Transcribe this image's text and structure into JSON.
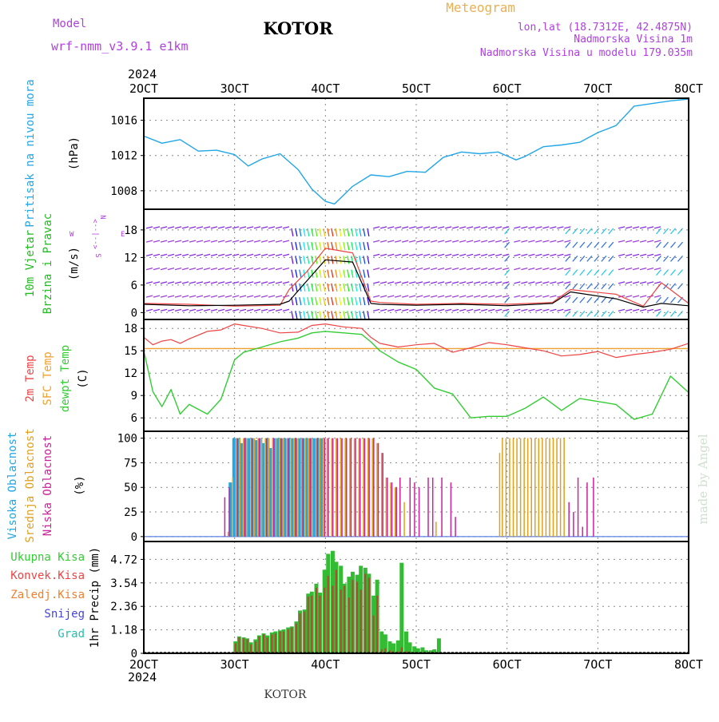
{
  "header": {
    "model_label": "Model",
    "model_name": "wrf-nmm_v3.9.1 e1km",
    "location": "KOTOR",
    "meteogram_label": "Meteogram",
    "coords": "lon,lat (18.7312E, 42.4875N)",
    "elevation": "Nadmorska Visina 1m",
    "model_elevation": "Nadmorska Visina u modelu 179.035m",
    "footer_location": "KOTOR",
    "credit": "made by Angel"
  },
  "colors": {
    "pressure": "#22a6e6",
    "temp2m": "#ee4444",
    "sfc": "#f0a030",
    "dewpt": "#33cc33",
    "high_cloud": "#22a6e6",
    "mid_cloud": "#e0a020",
    "low_cloud": "#cc2299",
    "wind_label": "#22bb22",
    "wind_compass": "#b040e0",
    "header_purple": "#b040e0",
    "header_orange": "#e8b050"
  },
  "time_axis": {
    "ticks": [
      "2OCT",
      "3OCT",
      "4OCT",
      "5OCT",
      "6OCT",
      "7OCT",
      "8OCT"
    ],
    "year": "2024"
  },
  "chart_data": [
    {
      "type": "line",
      "name": "pressure",
      "ylabel_colored": "Pritisak na nivou mora",
      "ylabel_unit": "(hPa)",
      "yticks": [
        "1008",
        "1012",
        "1016"
      ],
      "ylim": [
        1005.9,
        1018.5
      ],
      "x_days": [
        2.0,
        2.2,
        2.4,
        2.6,
        2.8,
        3.0,
        3.15,
        3.3,
        3.5,
        3.7,
        3.85,
        4.0,
        4.1,
        4.3,
        4.5,
        4.7,
        4.9,
        5.1,
        5.3,
        5.5,
        5.7,
        5.9,
        6.1,
        6.2,
        6.4,
        6.6,
        6.8,
        7.0,
        7.2,
        7.4,
        7.6,
        7.8,
        8.0
      ],
      "series": [
        {
          "values": [
            1014.2,
            1013.4,
            1013.8,
            1012.5,
            1012.6,
            1012.1,
            1010.8,
            1011.6,
            1012.2,
            1010.4,
            1008.2,
            1006.8,
            1006.5,
            1008.5,
            1009.8,
            1009.6,
            1010.2,
            1010.1,
            1011.8,
            1012.4,
            1012.2,
            1012.4,
            1011.5,
            1011.9,
            1013.0,
            1013.2,
            1013.5,
            1014.6,
            1015.4,
            1017.6,
            1017.9,
            1018.2,
            1018.4
          ]
        }
      ]
    },
    {
      "type": "line",
      "name": "wind",
      "ylabel_colored_1": "10m Vjetar",
      "ylabel_colored_2": "Brzina i Pravac",
      "ylabel_unit": "(m/s)",
      "compass": {
        "n": "N",
        "s": "S",
        "w": "W",
        "e": "E",
        "arrows": "<--|-->"
      },
      "yticks": [
        "0",
        "6",
        "12",
        "18"
      ],
      "ylim": [
        -1.5,
        22.5
      ],
      "x_days": [
        2.0,
        2.5,
        3.0,
        3.5,
        3.6,
        3.8,
        4.0,
        4.3,
        4.5,
        4.6,
        5.0,
        5.5,
        6.0,
        6.5,
        6.7,
        7.2,
        7.5,
        7.7,
        8.0
      ],
      "series": [
        {
          "name": "speed",
          "values": [
            1.8,
            1.5,
            1.6,
            1.8,
            2.5,
            7.0,
            11.5,
            11.0,
            2.0,
            1.8,
            1.6,
            1.8,
            1.5,
            2.0,
            4.5,
            3.0,
            1.2,
            2.0,
            1.5
          ]
        },
        {
          "name": "gust",
          "values": [
            2.0,
            1.8,
            1.4,
            1.6,
            5.0,
            9.0,
            14.0,
            13.0,
            2.5,
            2.2,
            1.8,
            2.0,
            1.8,
            2.2,
            5.0,
            4.0,
            1.4,
            6.5,
            2.0
          ]
        }
      ],
      "barb_bands": [
        {
          "x_start": 2.0,
          "x_end": 3.6,
          "style": "purple"
        },
        {
          "x_start": 3.6,
          "x_end": 4.5,
          "style": "rainbow"
        },
        {
          "x_start": 4.5,
          "x_end": 6.0,
          "style": "purple"
        },
        {
          "x_start": 6.0,
          "x_end": 6.05,
          "style": "blue"
        },
        {
          "x_start": 6.05,
          "x_end": 6.67,
          "style": "purple"
        },
        {
          "x_start": 6.67,
          "x_end": 7.2,
          "style": "blue"
        },
        {
          "x_start": 7.2,
          "x_end": 7.67,
          "style": "purple"
        },
        {
          "x_start": 7.67,
          "x_end": 8.0,
          "style": "blue"
        }
      ]
    },
    {
      "type": "line",
      "name": "temperature",
      "ylabel_colored_1": "2m Temp",
      "ylabel_colored_2": "SFC Temp",
      "ylabel_colored_3": "dewpt Temp",
      "ylabel_unit": "(C)",
      "yticks": [
        "6",
        "9",
        "12",
        "15",
        "18"
      ],
      "ylim": [
        4.2,
        19.2
      ],
      "x_days": [
        2.0,
        2.1,
        2.2,
        2.3,
        2.4,
        2.5,
        2.7,
        2.85,
        3.0,
        3.1,
        3.3,
        3.5,
        3.7,
        3.85,
        4.0,
        4.2,
        4.4,
        4.5,
        4.6,
        4.8,
        5.0,
        5.2,
        5.4,
        5.6,
        5.8,
        6.0,
        6.2,
        6.4,
        6.6,
        6.8,
        7.0,
        7.2,
        7.4,
        7.6,
        7.8,
        8.0
      ],
      "series": [
        {
          "name": "2m Temp",
          "values": [
            16.8,
            15.8,
            16.3,
            16.5,
            16.0,
            16.6,
            17.6,
            17.8,
            18.6,
            18.4,
            18.0,
            17.4,
            17.5,
            18.4,
            18.6,
            18.2,
            18.0,
            16.8,
            16.0,
            15.5,
            15.8,
            16.0,
            14.8,
            15.4,
            16.1,
            15.8,
            15.4,
            15.0,
            14.3,
            14.5,
            14.9,
            14.1,
            14.5,
            14.8,
            15.2,
            16.0
          ]
        },
        {
          "name": "SFC Temp",
          "values": [
            15.3,
            15.3,
            15.3,
            15.3,
            15.3,
            15.3,
            15.3,
            15.3,
            15.3,
            15.3,
            15.3,
            15.3,
            15.3,
            15.3,
            15.3,
            15.3,
            15.3,
            15.3,
            15.3,
            15.3,
            15.3,
            15.3,
            15.3,
            15.3,
            15.3,
            15.3,
            15.3,
            15.3,
            15.3,
            15.3,
            15.3,
            15.3,
            15.3,
            15.3,
            15.3,
            15.3
          ]
        },
        {
          "name": "dewpt Temp",
          "values": [
            15.0,
            9.5,
            7.5,
            9.8,
            6.5,
            7.8,
            6.5,
            8.5,
            13.8,
            14.8,
            15.5,
            16.2,
            16.7,
            17.4,
            17.6,
            17.4,
            17.2,
            16.2,
            15.0,
            13.5,
            12.5,
            10.0,
            9.2,
            6.0,
            6.2,
            6.2,
            7.3,
            8.8,
            7.0,
            8.6,
            8.2,
            7.8,
            5.8,
            6.5,
            11.6,
            9.4
          ]
        }
      ]
    },
    {
      "type": "bar",
      "name": "cloud_cover",
      "ylabel_colored_1": "Visoka Oblacnost",
      "ylabel_colored_2": "Srednja Oblacnost",
      "ylabel_colored_3": "Niska Oblacnost",
      "ylabel_unit": "(%)",
      "yticks": [
        "0",
        "25",
        "50",
        "75",
        "100"
      ],
      "ylim": [
        -5,
        107
      ],
      "x_days": [
        2.87,
        2.92,
        2.97,
        3.01,
        3.05,
        3.09,
        3.13,
        3.17,
        3.21,
        3.25,
        3.29,
        3.33,
        3.37,
        3.41,
        3.45,
        3.49,
        3.53,
        3.57,
        3.61,
        3.65,
        3.69,
        3.73,
        3.77,
        3.81,
        3.85,
        3.89,
        3.93,
        3.97,
        4.01,
        4.06,
        4.11,
        4.16,
        4.21,
        4.26,
        4.31,
        4.36,
        4.41,
        4.46,
        4.51,
        4.56,
        4.61,
        4.66,
        4.71,
        4.76,
        4.8,
        4.86,
        4.91,
        4.96,
        5.01,
        5.11,
        5.16,
        5.21,
        5.26,
        5.31,
        5.36,
        5.41,
        5.46,
        5.51,
        5.91,
        5.94,
        5.98,
        6.02,
        6.06,
        6.1,
        6.14,
        6.18,
        6.22,
        6.26,
        6.3,
        6.34,
        6.38,
        6.42,
        6.46,
        6.5,
        6.54,
        6.58,
        6.62,
        6.66,
        6.71,
        6.76,
        6.81,
        6.86,
        6.93
      ],
      "series": [
        {
          "name": "Visoka Oblacnost",
          "values": [
            0,
            0,
            55,
            100,
            100,
            95,
            100,
            100,
            100,
            98,
            100,
            95,
            100,
            90,
            100,
            100,
            100,
            100,
            100,
            100,
            100,
            100,
            100,
            100,
            100,
            100,
            100,
            100,
            0,
            0,
            0,
            0,
            0,
            0,
            0,
            0,
            0,
            0,
            0,
            0,
            0,
            0,
            0,
            0,
            0,
            0,
            0,
            0,
            0,
            0,
            0,
            0,
            0,
            0,
            0,
            0,
            0,
            0,
            0,
            0,
            0,
            0,
            0,
            0,
            0,
            0,
            0,
            0,
            0,
            0,
            0,
            0,
            0,
            0,
            0,
            0,
            0,
            0,
            0,
            0,
            0,
            0,
            0
          ]
        },
        {
          "name": "Srednja Oblacnost",
          "values": [
            0,
            5,
            60,
            100,
            100,
            100,
            100,
            100,
            100,
            100,
            100,
            100,
            100,
            100,
            100,
            100,
            100,
            100,
            100,
            100,
            100,
            100,
            100,
            100,
            100,
            100,
            100,
            100,
            100,
            100,
            100,
            100,
            100,
            100,
            100,
            100,
            100,
            100,
            100,
            95,
            85,
            60,
            55,
            50,
            0,
            35,
            0,
            0,
            0,
            0,
            0,
            15,
            0,
            0,
            0,
            0,
            0,
            0,
            85,
            100,
            100,
            100,
            100,
            100,
            100,
            100,
            100,
            100,
            100,
            100,
            100,
            100,
            100,
            100,
            100,
            100,
            100,
            0,
            0,
            0,
            0,
            0,
            0
          ]
        },
        {
          "name": "Niska Oblacnost",
          "values": [
            40,
            50,
            0,
            100,
            0,
            100,
            0,
            100,
            0,
            100,
            0,
            100,
            0,
            100,
            0,
            100,
            0,
            100,
            0,
            100,
            0,
            100,
            0,
            100,
            0,
            100,
            0,
            100,
            100,
            100,
            100,
            100,
            100,
            100,
            100,
            100,
            100,
            100,
            100,
            95,
            85,
            60,
            55,
            50,
            60,
            0,
            60,
            55,
            50,
            60,
            60,
            0,
            60,
            0,
            55,
            20,
            0,
            0,
            0,
            0,
            0,
            0,
            0,
            0,
            0,
            0,
            0,
            0,
            0,
            0,
            0,
            0,
            0,
            0,
            0,
            0,
            0,
            35,
            25,
            60,
            10,
            55,
            60
          ]
        }
      ]
    },
    {
      "type": "bar",
      "name": "precipitation",
      "legend": [
        "Ukupna Kisa",
        "Konvek.Kisa",
        "Zaledj.Kisa",
        "Snijeg",
        "Grad"
      ],
      "ylabel_unit": "1hr Precip (mm)",
      "yticks": [
        "0",
        "1.18",
        "2.36",
        "3.54",
        "4.72"
      ],
      "ylim": [
        0,
        5.62
      ],
      "x_days": [
        3.01,
        3.05,
        3.1,
        3.14,
        3.18,
        3.23,
        3.27,
        3.32,
        3.36,
        3.41,
        3.45,
        3.5,
        3.54,
        3.59,
        3.63,
        3.68,
        3.72,
        3.77,
        3.81,
        3.85,
        3.9,
        3.94,
        3.99,
        4.03,
        4.08,
        4.12,
        4.17,
        4.21,
        4.26,
        4.3,
        4.35,
        4.39,
        4.44,
        4.48,
        4.53,
        4.57,
        4.62,
        4.66,
        4.71,
        4.75,
        4.8,
        4.84,
        4.89,
        4.93,
        4.98,
        5.02,
        5.07,
        5.11,
        5.16,
        5.2,
        5.25
      ],
      "series": [
        {
          "name": "Ukupna Kisa",
          "values": [
            0.6,
            0.85,
            0.8,
            0.75,
            0.55,
            0.7,
            0.9,
            1.0,
            0.9,
            1.05,
            1.1,
            1.15,
            1.2,
            1.3,
            1.35,
            1.6,
            2.15,
            2.2,
            3.0,
            3.1,
            3.5,
            3.05,
            4.2,
            5.0,
            5.15,
            4.6,
            4.4,
            3.5,
            3.85,
            4.1,
            3.95,
            4.4,
            4.3,
            4.0,
            2.9,
            3.7,
            1.1,
            0.95,
            0.6,
            0.5,
            0.65,
            4.55,
            1.1,
            0.55,
            0.35,
            0.25,
            0.3,
            0.15,
            0.15,
            0.2,
            0.75
          ]
        },
        {
          "name": "Konvek.Kisa",
          "values": [
            0.5,
            0.8,
            0.75,
            0.7,
            0.45,
            0.6,
            0.85,
            0.95,
            0.8,
            0.95,
            1.0,
            1.1,
            1.1,
            1.2,
            1.3,
            1.5,
            2.0,
            2.1,
            2.85,
            2.9,
            3.3,
            2.9,
            3.3,
            3.9,
            3.4,
            4.2,
            3.2,
            3.4,
            2.8,
            3.7,
            3.6,
            3.2,
            4.0,
            3.8,
            1.9,
            2.9,
            0.2,
            0.25,
            0.15,
            0.1,
            0.1,
            0.3,
            0.1,
            0.1,
            0.05,
            0.05,
            0.05,
            0.05,
            0.05,
            0.05,
            0.05
          ]
        }
      ]
    }
  ]
}
